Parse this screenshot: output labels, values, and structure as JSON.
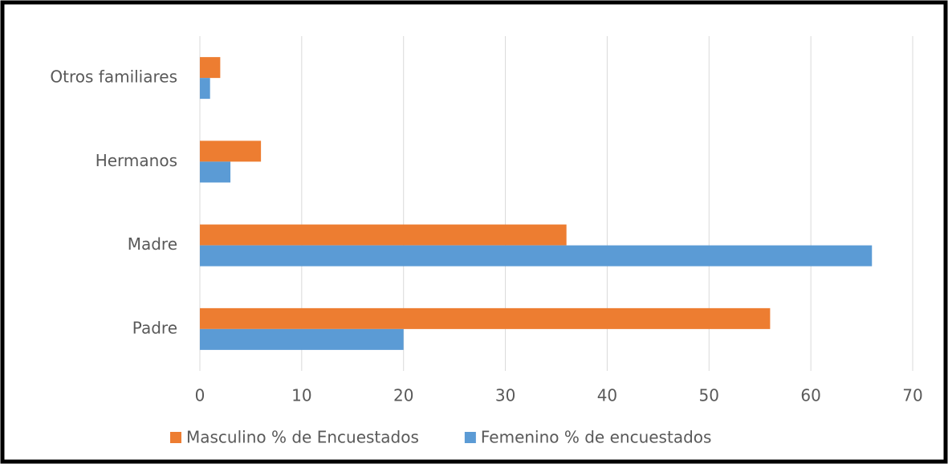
{
  "chart_data": {
    "type": "barh",
    "categories": [
      "Padre",
      "Madre",
      "Hermanos",
      "Otros familiares"
    ],
    "series": [
      {
        "name": "Masculino % de Encuestados",
        "color": "#ed7d31",
        "values": [
          56,
          36,
          6,
          2
        ]
      },
      {
        "name": "Femenino % de encuestados",
        "color": "#5b9bd5",
        "values": [
          20,
          66,
          3,
          1
        ]
      }
    ],
    "xlim": [
      0,
      70
    ],
    "xticks": [
      0,
      10,
      20,
      30,
      40,
      50,
      60,
      70
    ],
    "grid": true,
    "legend": "bottom"
  }
}
